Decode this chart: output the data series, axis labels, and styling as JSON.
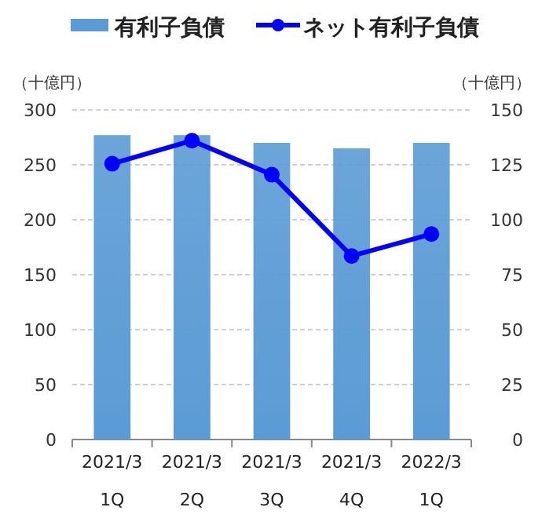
{
  "chart_data": {
    "type": "bar",
    "ylabel": "（十億円）",
    "y2label": "（十億円）",
    "categories": [
      "2021/3 1Q",
      "2021/3 2Q",
      "2021/3 3Q",
      "2021/3 4Q",
      "2022/3 1Q"
    ],
    "series": [
      {
        "name": "有利子負債",
        "color": "#5b9bd5",
        "values": [
          277,
          277,
          270,
          265,
          270
        ]
      },
      {
        "name": "ネット有利子負債",
        "type": "line",
        "axis": "y2",
        "color": "#0000ff",
        "marker": "circle",
        "values": [
          125.5,
          136,
          120.5,
          83.5,
          93.5
        ]
      }
    ],
    "ylim": [
      0,
      300
    ],
    "yticks": [
      0,
      50,
      100,
      150,
      200,
      250,
      300
    ],
    "y2lim": [
      0,
      150
    ],
    "y2ticks": [
      0,
      25,
      50,
      75,
      100,
      125,
      150
    ],
    "grid": "y",
    "legend": "top"
  }
}
